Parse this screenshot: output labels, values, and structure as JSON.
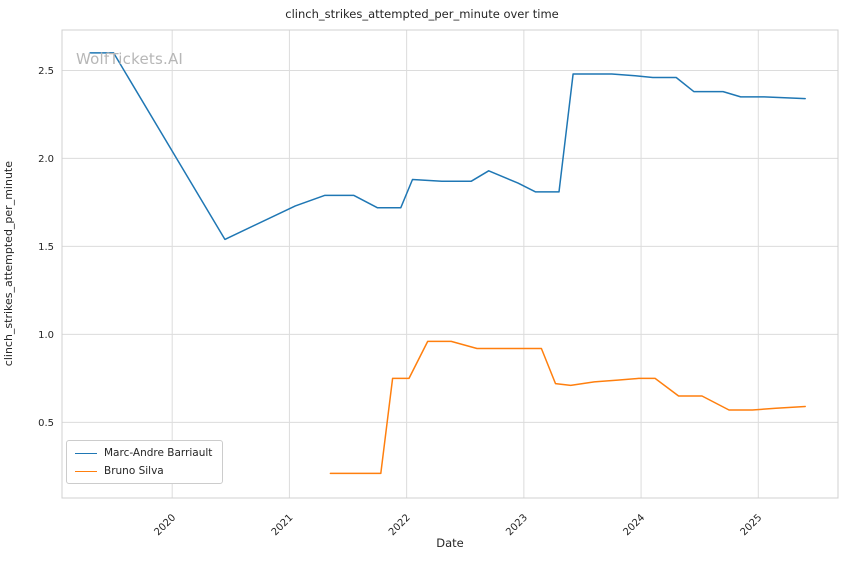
{
  "watermark": "WolfTickets.AI",
  "chart_data": {
    "type": "line",
    "title": "clinch_strikes_attempted_per_minute over time",
    "xlabel": "Date",
    "ylabel": "clinch_strikes_attempted_per_minute",
    "xlim": [
      2019.06,
      2025.68
    ],
    "ylim": [
      0.07,
      2.73
    ],
    "xticks": [
      2020,
      2021,
      2022,
      2023,
      2024,
      2025
    ],
    "yticks": [
      0.5,
      1.0,
      1.5,
      2.0,
      2.5
    ],
    "grid": true,
    "legend_position": "lower left",
    "series": [
      {
        "name": "Marc-Andre Barriault",
        "color": "#1f77b4",
        "x": [
          2019.3,
          2019.5,
          2020.45,
          2021.05,
          2021.3,
          2021.55,
          2021.75,
          2021.95,
          2022.05,
          2022.3,
          2022.55,
          2022.7,
          2022.95,
          2023.1,
          2023.3,
          2023.42,
          2023.75,
          2023.95,
          2024.1,
          2024.3,
          2024.45,
          2024.7,
          2024.85,
          2025.05,
          2025.4
        ],
        "values": [
          2.6,
          2.6,
          1.54,
          1.73,
          1.79,
          1.79,
          1.72,
          1.72,
          1.88,
          1.87,
          1.87,
          1.93,
          1.86,
          1.81,
          1.81,
          2.48,
          2.48,
          2.47,
          2.46,
          2.46,
          2.38,
          2.38,
          2.35,
          2.35,
          2.34
        ]
      },
      {
        "name": "Bruno Silva",
        "color": "#ff7f0e",
        "x": [
          2021.35,
          2021.6,
          2021.78,
          2021.88,
          2022.02,
          2022.18,
          2022.38,
          2022.6,
          2022.8,
          2023.02,
          2023.15,
          2023.27,
          2023.4,
          2023.6,
          2023.8,
          2023.98,
          2024.12,
          2024.32,
          2024.52,
          2024.75,
          2024.95,
          2025.15,
          2025.4
        ],
        "values": [
          0.21,
          0.21,
          0.21,
          0.75,
          0.75,
          0.96,
          0.96,
          0.92,
          0.92,
          0.92,
          0.92,
          0.72,
          0.71,
          0.73,
          0.74,
          0.75,
          0.75,
          0.65,
          0.65,
          0.57,
          0.57,
          0.58,
          0.59
        ]
      }
    ]
  }
}
